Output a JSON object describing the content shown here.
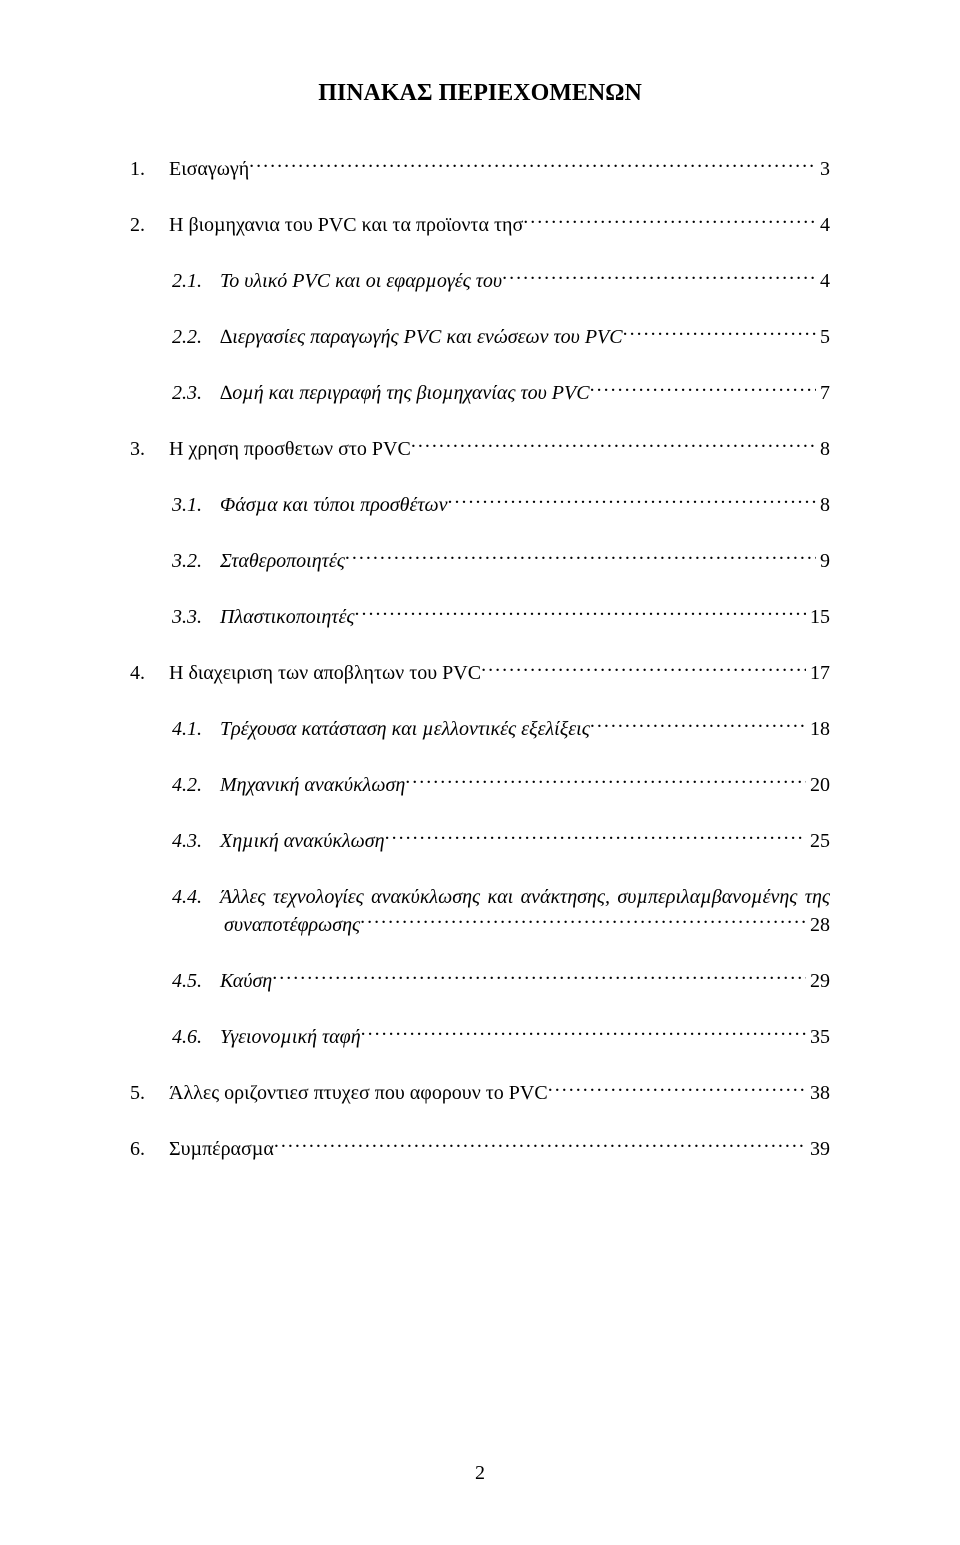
{
  "title": "ΠΙΝΑΚΑΣ ΠΕΡΙΕΧΟΜΕΝΩΝ",
  "footer_page": "2",
  "toc": [
    {
      "level": 0,
      "num": "1.",
      "label": "Εισαγωγή",
      "page": "3",
      "italic": false
    },
    {
      "level": 0,
      "num": "2.",
      "label": "Η βιοµηχανια του PVC και τα προϊοντα τησ",
      "page": "4",
      "italic": false
    },
    {
      "level": 1,
      "num": "2.1.",
      "label": "Το υλικό PVC και οι εφαρµογές του",
      "page": "4",
      "italic": true
    },
    {
      "level": 1,
      "num": "2.2.",
      "label": "∆ιεργασίες παραγωγής PVC και ενώσεων του PVC",
      "page": "5",
      "italic": true
    },
    {
      "level": 1,
      "num": "2.3.",
      "label": "∆οµή και περιγραφή της βιοµηχανίας του PVC",
      "page": "7",
      "italic": true
    },
    {
      "level": 0,
      "num": "3.",
      "label": "Η χρηση προσθετων στο PVC",
      "page": "8",
      "italic": false
    },
    {
      "level": 1,
      "num": "3.1.",
      "label": "Φάσµα και τύποι προσθέτων",
      "page": "8",
      "italic": true
    },
    {
      "level": 1,
      "num": "3.2.",
      "label": "Σταθεροποιητές",
      "page": "9",
      "italic": true
    },
    {
      "level": 1,
      "num": "3.3.",
      "label": "Πλαστικοποιητές",
      "page": "15",
      "italic": true
    },
    {
      "level": 0,
      "num": "4.",
      "label": "Η διαχειριση των αποβλητων του PVC",
      "page": "17",
      "italic": false
    },
    {
      "level": 1,
      "num": "4.1.",
      "label": "Τρέχουσα κατάσταση και µελλοντικές εξελίξεις",
      "page": "18",
      "italic": true
    },
    {
      "level": 1,
      "num": "4.2.",
      "label": "Μηχανική ανακύκλωση",
      "page": "20",
      "italic": true
    },
    {
      "level": 1,
      "num": "4.3.",
      "label": "Χηµική ανακύκλωση",
      "page": "25",
      "italic": true
    },
    {
      "level": 1,
      "num": "4.4.",
      "label_wrap_1": "Άλλες τεχνολογίες ανακύκλωσης και ανάκτησης, συµπεριλαµβανοµένης της",
      "label_wrap_2": "συναποτέφρωσης",
      "page": "28",
      "italic": true,
      "wrap": true
    },
    {
      "level": 1,
      "num": "4.5.",
      "label": "Καύση",
      "page": "29",
      "italic": true
    },
    {
      "level": 1,
      "num": "4.6.",
      "label": "Υγειονοµική ταφή",
      "page": "35",
      "italic": true
    },
    {
      "level": 0,
      "num": "5.",
      "label": "Άλλες οριζοντιεσ πτυχεσ που αφορουν το PVC",
      "page": "38",
      "italic": false
    },
    {
      "level": 0,
      "num": "6.",
      "label": "Συµπέρασµα",
      "page": "39",
      "italic": false
    }
  ]
}
